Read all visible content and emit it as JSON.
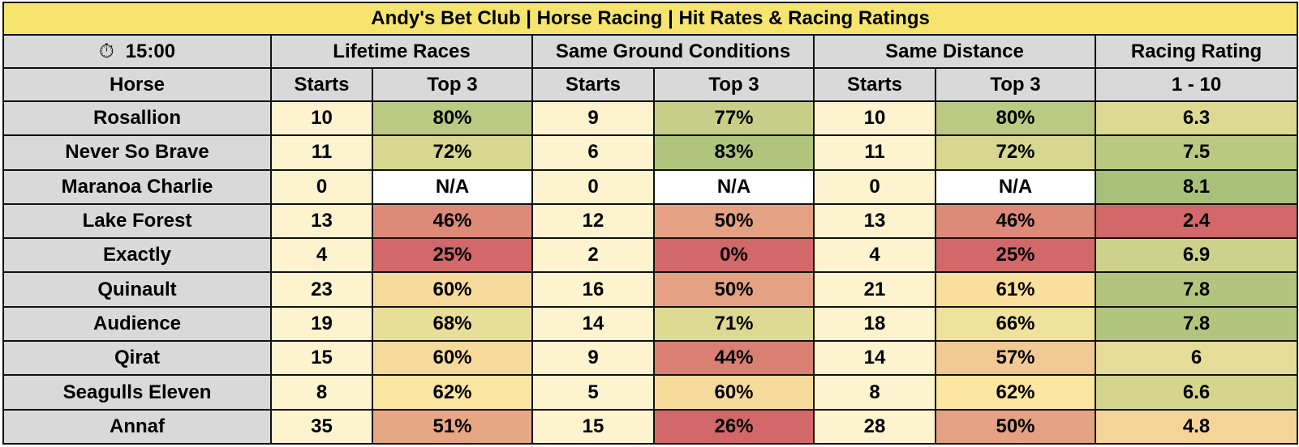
{
  "title": "Andy's Bet Club | Horse Racing | Hit Rates & Racing Ratings",
  "header": {
    "time_icon": "stopwatch-icon",
    "time": "15:00",
    "groups": [
      "Lifetime Races",
      "Same Ground Conditions",
      "Same Distance",
      "Racing Rating"
    ],
    "sub": [
      "Horse",
      "Starts",
      "Top 3",
      "Starts",
      "Top 3",
      "Starts",
      "Top 3",
      "1 - 10"
    ]
  },
  "colors": {
    "title_bg": "#f5e56e",
    "header_bg": "#d9d9d9",
    "starts_bg": "#fdf3cf",
    "scale_low": "#d2686a",
    "scale_mid": "#fbe8a2",
    "scale_high": "#a9c07a",
    "na_bg": "#ffffff"
  },
  "rows": [
    {
      "horse": "Rosallion",
      "lifetime_starts": "10",
      "lifetime_top3": "80%",
      "ground_starts": "9",
      "ground_top3": "77%",
      "distance_starts": "10",
      "distance_top3": "80%",
      "rating": "6.3"
    },
    {
      "horse": "Never So Brave",
      "lifetime_starts": "11",
      "lifetime_top3": "72%",
      "ground_starts": "6",
      "ground_top3": "83%",
      "distance_starts": "11",
      "distance_top3": "72%",
      "rating": "7.5"
    },
    {
      "horse": "Maranoa Charlie",
      "lifetime_starts": "0",
      "lifetime_top3": "N/A",
      "ground_starts": "0",
      "ground_top3": "N/A",
      "distance_starts": "0",
      "distance_top3": "N/A",
      "rating": "8.1"
    },
    {
      "horse": "Lake Forest",
      "lifetime_starts": "13",
      "lifetime_top3": "46%",
      "ground_starts": "12",
      "ground_top3": "50%",
      "distance_starts": "13",
      "distance_top3": "46%",
      "rating": "2.4"
    },
    {
      "horse": "Exactly",
      "lifetime_starts": "4",
      "lifetime_top3": "25%",
      "ground_starts": "2",
      "ground_top3": "0%",
      "distance_starts": "4",
      "distance_top3": "25%",
      "rating": "6.9"
    },
    {
      "horse": "Quinault",
      "lifetime_starts": "23",
      "lifetime_top3": "60%",
      "ground_starts": "16",
      "ground_top3": "50%",
      "distance_starts": "21",
      "distance_top3": "61%",
      "rating": "7.8"
    },
    {
      "horse": "Audience",
      "lifetime_starts": "19",
      "lifetime_top3": "68%",
      "ground_starts": "14",
      "ground_top3": "71%",
      "distance_starts": "18",
      "distance_top3": "66%",
      "rating": "7.8"
    },
    {
      "horse": "Qirat",
      "lifetime_starts": "15",
      "lifetime_top3": "60%",
      "ground_starts": "9",
      "ground_top3": "44%",
      "distance_starts": "14",
      "distance_top3": "57%",
      "rating": "6"
    },
    {
      "horse": "Seagulls Eleven",
      "lifetime_starts": "8",
      "lifetime_top3": "62%",
      "ground_starts": "5",
      "ground_top3": "60%",
      "distance_starts": "8",
      "distance_top3": "62%",
      "rating": "6.6"
    },
    {
      "horse": "Annaf",
      "lifetime_starts": "35",
      "lifetime_top3": "51%",
      "ground_starts": "15",
      "ground_top3": "26%",
      "distance_starts": "28",
      "distance_top3": "50%",
      "rating": "4.8"
    }
  ]
}
